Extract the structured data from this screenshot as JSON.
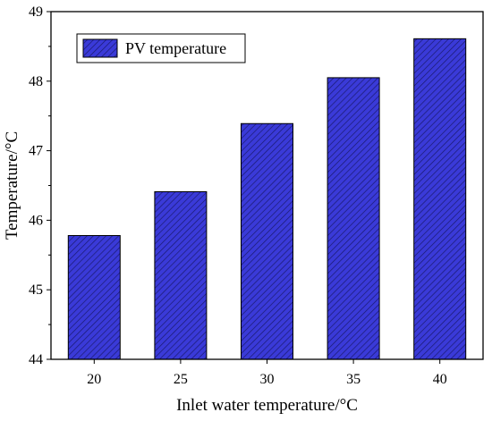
{
  "chart_data": {
    "type": "bar",
    "categories": [
      "20",
      "25",
      "30",
      "35",
      "40"
    ],
    "series": [
      {
        "name": "PV temperature",
        "values": [
          45.78,
          46.41,
          47.39,
          48.05,
          48.61
        ]
      }
    ],
    "xlabel": "Inlet water temperature/°C",
    "ylabel": "Temperature/°C",
    "ylim": [
      44,
      49
    ],
    "yticks": [
      "44",
      "45",
      "46",
      "47",
      "48",
      "49"
    ],
    "grid": false,
    "legend_position": "top-left",
    "colors": {
      "bar_fill": "#3a3ad8",
      "bar_hatch": "#1a1a70",
      "axis": "#000000"
    }
  }
}
